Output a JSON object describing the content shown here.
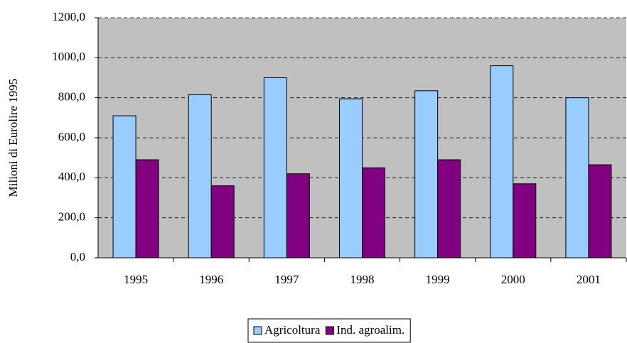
{
  "chart_data": {
    "type": "bar",
    "y_label": "Milioni di Eurolire 1995",
    "categories": [
      "1995",
      "1996",
      "1997",
      "1998",
      "1999",
      "2000",
      "2001"
    ],
    "series": [
      {
        "name": "Agricoltura",
        "color": "#99ccff",
        "values": [
          710,
          815,
          900,
          795,
          835,
          960,
          800
        ]
      },
      {
        "name": "Ind. agroalim.",
        "color": "#800080",
        "values": [
          490,
          360,
          420,
          450,
          490,
          370,
          465
        ]
      }
    ],
    "ylim": [
      0,
      1200
    ],
    "yticks": [
      {
        "value": 0,
        "label": "0,0"
      },
      {
        "value": 200,
        "label": "200,0"
      },
      {
        "value": 400,
        "label": "400,0"
      },
      {
        "value": 600,
        "label": "600,0"
      },
      {
        "value": 800,
        "label": "800,0"
      },
      {
        "value": 1000,
        "label": "1000,0"
      },
      {
        "value": 1200,
        "label": "1200,0"
      }
    ],
    "grid": true,
    "legend": "bottom"
  }
}
